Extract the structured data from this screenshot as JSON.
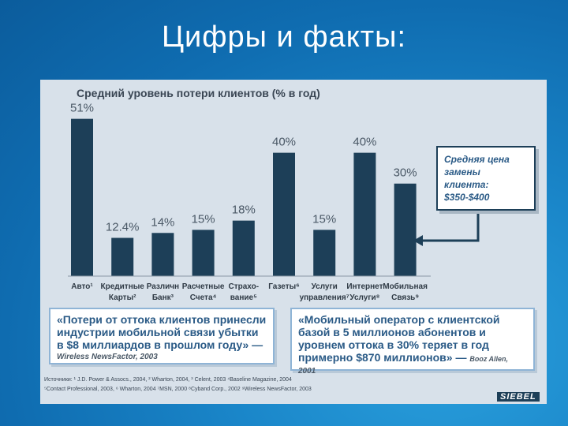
{
  "slide": {
    "title": "Цифры и факты:"
  },
  "chart_data": {
    "type": "bar",
    "title": "Средний уровень потери клиентов (% в год)",
    "ylim": [
      0,
      55
    ],
    "categories": [
      [
        "Авто¹"
      ],
      [
        "Кредитные",
        "Карты²"
      ],
      [
        "Различн",
        "Банк³"
      ],
      [
        "Расчетные",
        "Счета⁴"
      ],
      [
        "Страхо-",
        "вание⁵"
      ],
      [
        "Газеты⁶"
      ],
      [
        "Услуги",
        "управления⁷"
      ],
      [
        "Интернет",
        "Услуги⁸"
      ],
      [
        "Мобильная",
        "Связь⁹"
      ]
    ],
    "values": [
      51,
      12.4,
      14,
      15,
      18,
      40,
      15,
      40,
      30
    ],
    "value_labels": [
      "51%",
      "12.4%",
      "14%",
      "15%",
      "18%",
      "40%",
      "15%",
      "40%",
      "30%"
    ],
    "bar_color": "#1d3f58"
  },
  "callout": {
    "lines": [
      "Средняя цена",
      "замены",
      "клиента:",
      "$350-$400"
    ]
  },
  "quote_left": {
    "text": "«Потери от оттока клиентов принесли индустрии мобильной связи убытки в $8 миллиардов в прошлом году» —",
    "source": "Wireless NewsFactor, 2003"
  },
  "quote_right": {
    "text": "«Мобильный оператор с клиентской базой в 5 миллионов абонентов и уровнем оттока в 30% теряет в год примерно $870 миллионов» —",
    "source_inline": "Booz Allen,",
    "source_year": "2001"
  },
  "sources": {
    "line1": "Источники: ¹ J.D. Power & Assocs., 2004, ² Wharton, 2004, ³ Celent, 2003 ⁴Baseline Magazine, 2004",
    "line2": "⁵Contact Professional, 2003, ⁶ Wharton, 2004 ⁷MSN, 2000 ⁸Cyband Corp., 2002 ⁹Wireless NewsFactor, 2003"
  },
  "logo": {
    "text": "SIEBEL"
  }
}
